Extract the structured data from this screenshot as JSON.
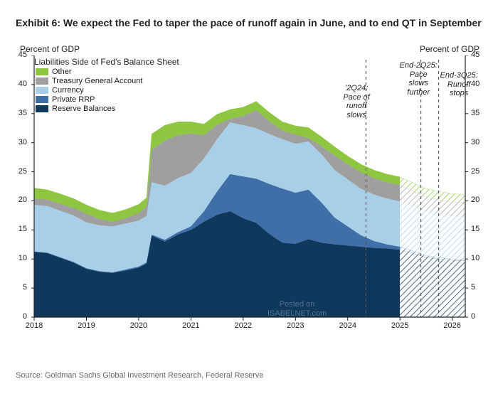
{
  "title": "Exhibit 6: We expect the Fed to taper the pace of runoff again in June, and to end QT in September",
  "subtitle": "Liabilities Side of Fed's Balance Sheet",
  "ylabel": "Percent of GDP",
  "source": "Source: Goldman Sachs Global Investment Research, Federal Reserve",
  "watermark_line1": "Posted on",
  "watermark_line2": "ISABELNET.com",
  "chart": {
    "type": "stacked-area",
    "background_color": "#ffffff",
    "axis_color": "#222222",
    "grid": false,
    "xlim": [
      2018.0,
      2026.25
    ],
    "ylim": [
      0,
      45
    ],
    "ytick_step": 5,
    "xticks": [
      2018,
      2019,
      2020,
      2021,
      2022,
      2023,
      2024,
      2025,
      2026
    ],
    "font_size_axis": 11,
    "font_size_title": 14,
    "forecast_start_x": 2025.0,
    "series_order": [
      "reserve_balances",
      "private_rrp",
      "currency",
      "tga",
      "other"
    ],
    "colors": {
      "reserve_balances": "#10375c",
      "private_rrp": "#3f6fa6",
      "currency": "#a9cfe8",
      "tga": "#9f9f9f",
      "other": "#8ec641"
    },
    "legend": [
      {
        "label": "Other",
        "key": "other"
      },
      {
        "label": "Treasury General Account",
        "key": "tga"
      },
      {
        "label": "Currency",
        "key": "currency"
      },
      {
        "label": "Private RRP",
        "key": "private_rrp"
      },
      {
        "label": "Reserve Balances",
        "key": "reserve_balances"
      }
    ],
    "data": {
      "x": [
        2018.0,
        2018.25,
        2018.5,
        2018.75,
        2019.0,
        2019.25,
        2019.5,
        2019.75,
        2020.0,
        2020.15,
        2020.25,
        2020.5,
        2020.75,
        2021.0,
        2021.25,
        2021.5,
        2021.75,
        2022.0,
        2022.25,
        2022.5,
        2022.75,
        2023.0,
        2023.25,
        2023.5,
        2023.75,
        2024.0,
        2024.25,
        2024.5,
        2024.75,
        2025.0,
        2025.25,
        2025.5,
        2025.75,
        2026.0,
        2026.25
      ],
      "reserve_balances": [
        11.2,
        11.0,
        10.2,
        9.4,
        8.3,
        7.8,
        7.6,
        8.0,
        8.5,
        9.2,
        14.0,
        13.0,
        14.2,
        15.0,
        16.4,
        17.6,
        18.2,
        17.0,
        16.2,
        14.3,
        12.8,
        12.6,
        13.4,
        12.8,
        12.5,
        12.3,
        12.1,
        11.9,
        11.8,
        11.6,
        11.0,
        10.3,
        10.0,
        9.8,
        9.7
      ],
      "private_rrp": [
        0.1,
        0.1,
        0.1,
        0.1,
        0.1,
        0.1,
        0.1,
        0.2,
        0.2,
        0.2,
        0.2,
        0.3,
        0.4,
        0.6,
        1.8,
        4.0,
        6.4,
        7.2,
        7.6,
        8.6,
        9.3,
        8.8,
        8.5,
        6.9,
        4.6,
        3.3,
        2.0,
        1.2,
        0.7,
        0.5,
        0.4,
        0.3,
        0.3,
        0.2,
        0.2
      ],
      "currency": [
        8.0,
        8.0,
        8.0,
        8.0,
        7.9,
        7.9,
        7.9,
        7.9,
        7.9,
        8.0,
        9.0,
        9.3,
        9.3,
        9.2,
        9.1,
        9.0,
        8.9,
        8.8,
        8.7,
        8.6,
        8.5,
        8.4,
        8.3,
        8.3,
        8.2,
        8.1,
        8.0,
        8.0,
        7.9,
        7.8,
        7.7,
        7.6,
        7.5,
        7.4,
        7.4
      ],
      "tga": [
        1.1,
        1.1,
        1.2,
        1.3,
        1.5,
        1.1,
        0.8,
        0.9,
        1.3,
        1.6,
        5.5,
        7.8,
        7.4,
        6.8,
        4.0,
        2.5,
        0.6,
        1.6,
        3.1,
        2.2,
        1.5,
        1.6,
        0.6,
        1.4,
        2.5,
        2.6,
        2.8,
        2.8,
        2.8,
        2.8,
        2.6,
        2.5,
        2.4,
        2.4,
        2.4
      ],
      "other": [
        1.8,
        1.7,
        1.7,
        1.6,
        1.5,
        1.5,
        1.5,
        1.5,
        1.5,
        1.5,
        2.8,
        2.6,
        2.3,
        2.0,
        1.9,
        1.8,
        1.6,
        1.5,
        1.5,
        1.5,
        1.5,
        1.5,
        1.8,
        1.6,
        1.5,
        1.4,
        1.4,
        1.4,
        1.4,
        1.4,
        1.4,
        1.4,
        1.4,
        1.4,
        1.4
      ]
    },
    "annotations": [
      {
        "x": 2024.35,
        "lines": [
          "'2Q24:",
          "Pace of",
          "runoff",
          "slows"
        ]
      },
      {
        "x": 2025.4,
        "lines": [
          "End-2Q25:",
          "Pace",
          "slows",
          "further"
        ]
      },
      {
        "x": 2025.74,
        "lines": [
          "End-3Q25:",
          "Runoff",
          "stops"
        ]
      }
    ],
    "vlines": [
      {
        "x": 2024.35,
        "dash": "4,4",
        "color": "#555555"
      },
      {
        "x": 2025.4,
        "dash": "4,4",
        "color": "#555555"
      },
      {
        "x": 2025.74,
        "dash": "4,4",
        "color": "#555555"
      }
    ],
    "hatch": {
      "pattern_spacing": 6,
      "stroke": "#2b5a8a",
      "opacity": 0.75
    }
  }
}
